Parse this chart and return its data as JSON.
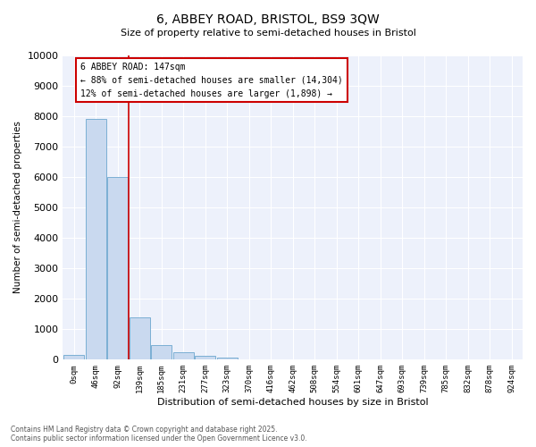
{
  "title": "6, ABBEY ROAD, BRISTOL, BS9 3QW",
  "subtitle": "Size of property relative to semi-detached houses in Bristol",
  "xlabel": "Distribution of semi-detached houses by size in Bristol",
  "ylabel": "Number of semi-detached properties",
  "bar_color": "#c9d9ef",
  "bar_edge_color": "#7bafd4",
  "categories": [
    "0sqm",
    "46sqm",
    "92sqm",
    "139sqm",
    "185sqm",
    "231sqm",
    "277sqm",
    "323sqm",
    "370sqm",
    "416sqm",
    "462sqm",
    "508sqm",
    "554sqm",
    "601sqm",
    "647sqm",
    "693sqm",
    "739sqm",
    "785sqm",
    "832sqm",
    "878sqm",
    "924sqm"
  ],
  "values": [
    150,
    7900,
    6000,
    1380,
    480,
    230,
    130,
    70,
    0,
    0,
    0,
    0,
    0,
    0,
    0,
    0,
    0,
    0,
    0,
    0,
    0
  ],
  "ylim": [
    0,
    10000
  ],
  "yticks": [
    0,
    1000,
    2000,
    3000,
    4000,
    5000,
    6000,
    7000,
    8000,
    9000,
    10000
  ],
  "vline_x": 2.5,
  "property_label": "6 ABBEY ROAD: 147sqm",
  "annotation_smaller": "← 88% of semi-detached houses are smaller (14,304)",
  "annotation_larger": "12% of semi-detached houses are larger (1,898) →",
  "vline_color": "#cc0000",
  "background_color": "#edf1fb",
  "grid_color": "#ffffff",
  "footer1": "Contains HM Land Registry data © Crown copyright and database right 2025.",
  "footer2": "Contains public sector information licensed under the Open Government Licence v3.0."
}
